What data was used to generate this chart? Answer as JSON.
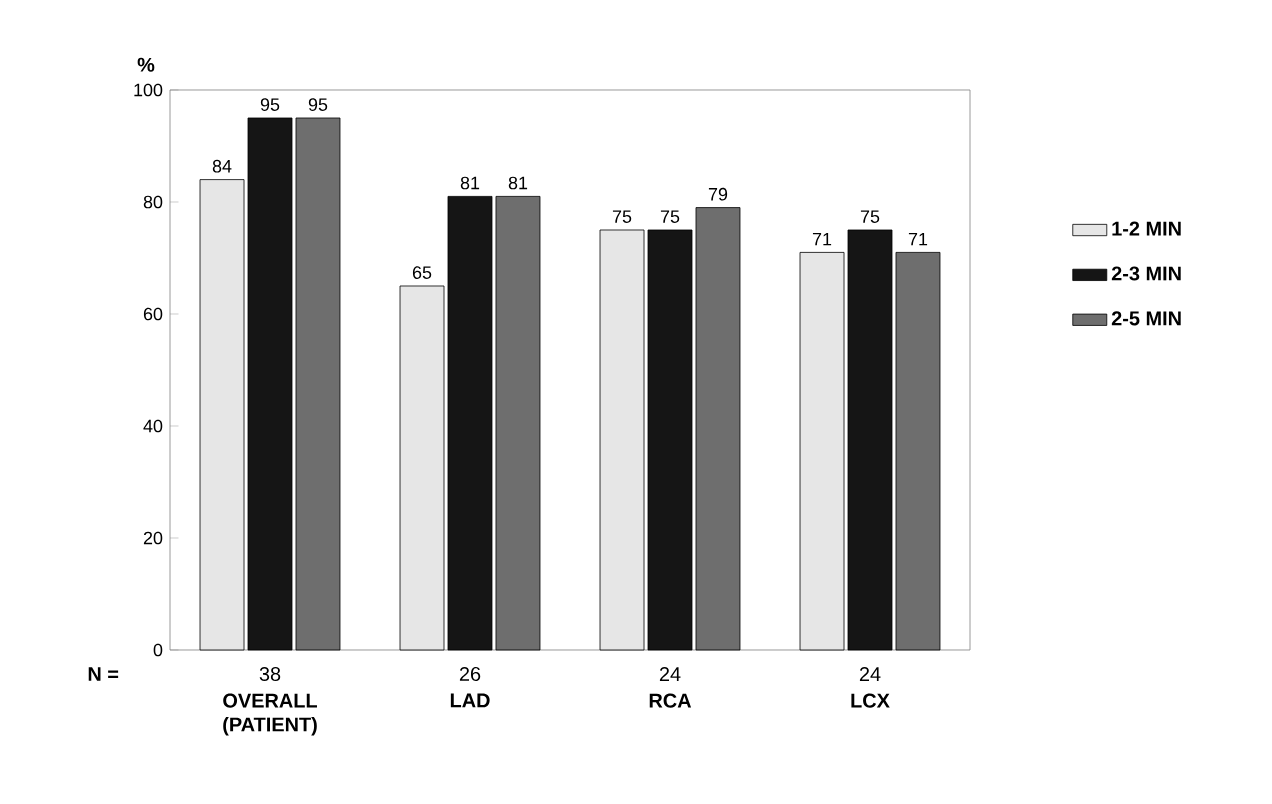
{
  "chart_data": {
    "type": "bar",
    "ylabel": "%",
    "categories": [
      "OVERALL (PATIENT)",
      "LAD",
      "RCA",
      "LCX"
    ],
    "series": [
      {
        "name": "1-2 MIN",
        "color": "#e6e6e6",
        "values": [
          84,
          65,
          75,
          71
        ]
      },
      {
        "name": "2-3 MIN",
        "color": "#151515",
        "values": [
          95,
          81,
          75,
          75
        ]
      },
      {
        "name": "2-5 MIN",
        "color": "#6e6e6e",
        "values": [
          95,
          81,
          79,
          71
        ]
      }
    ],
    "ylim": [
      0,
      100
    ],
    "yticks": [
      0,
      20,
      40,
      60,
      80,
      100
    ],
    "data_labels": true,
    "grid": false,
    "legend": "right",
    "annotations": [
      "N =",
      "38",
      "26",
      "24",
      "24"
    ]
  }
}
